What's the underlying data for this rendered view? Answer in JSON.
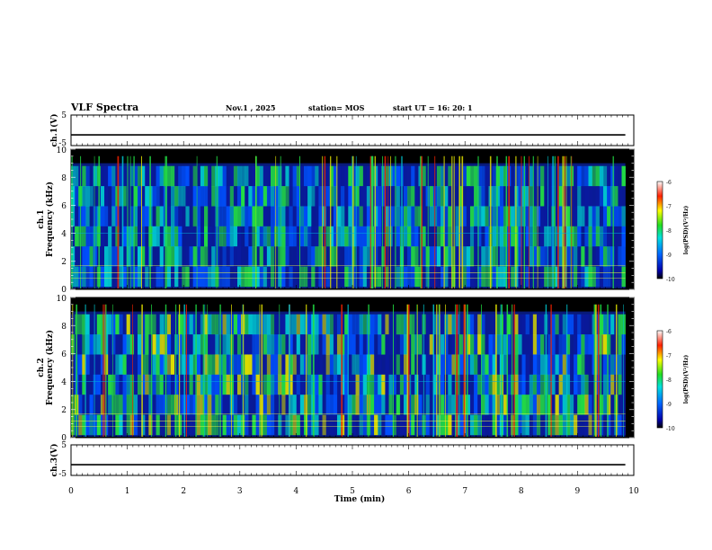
{
  "header": {
    "title": "VLF Spectra",
    "date": "Nov.1 , 2025",
    "station": "station= MOS",
    "start_ut": "start UT =  16: 20: 1"
  },
  "chart_data": [
    {
      "type": "line",
      "panel": "ch1-waveform",
      "ylabel": "ch.1(V)",
      "yticks": [
        "5",
        "-5"
      ],
      "ylim": [
        -5,
        5
      ],
      "level": -1.5
    },
    {
      "type": "heatmap",
      "panel": "ch1-spectrogram",
      "ylabel_line1": "ch.1",
      "ylabel_line2": "Frequency (kHz)",
      "ylim": [
        0,
        10
      ],
      "yticks": [
        "0",
        "2",
        "4",
        "6",
        "8",
        "10"
      ],
      "colorbar": {
        "label": "log(PSD)(V²/Hz)",
        "ticks": [
          "-6",
          "-7",
          "-8",
          "-9",
          "-10"
        ],
        "range": [
          -10,
          -6
        ]
      }
    },
    {
      "type": "heatmap",
      "panel": "ch2-spectrogram",
      "ylabel_line1": "ch.2",
      "ylabel_line2": "Frequency (kHz)",
      "ylim": [
        0,
        10
      ],
      "yticks": [
        "0",
        "2",
        "4",
        "6",
        "8",
        "10"
      ],
      "colorbar": {
        "label": "log(PSD)(V²/Hz)",
        "ticks": [
          "-6",
          "-7",
          "-8",
          "-9",
          "-10"
        ],
        "range": [
          -10,
          -6
        ]
      }
    },
    {
      "type": "line",
      "panel": "ch3-waveform",
      "ylabel": "ch.3(V)",
      "yticks": [
        "5",
        "-5"
      ],
      "ylim": [
        -5,
        5
      ],
      "level": -1.5
    }
  ],
  "xaxis": {
    "label": "Time (min)",
    "ticks": [
      "0",
      "1",
      "2",
      "3",
      "4",
      "5",
      "6",
      "7",
      "8",
      "9",
      "10"
    ],
    "range": [
      0,
      10
    ]
  },
  "colors": {
    "background": "#000000",
    "noise": "#0a1aa0",
    "emission": "#22dd55",
    "peak": "#ee2200"
  }
}
